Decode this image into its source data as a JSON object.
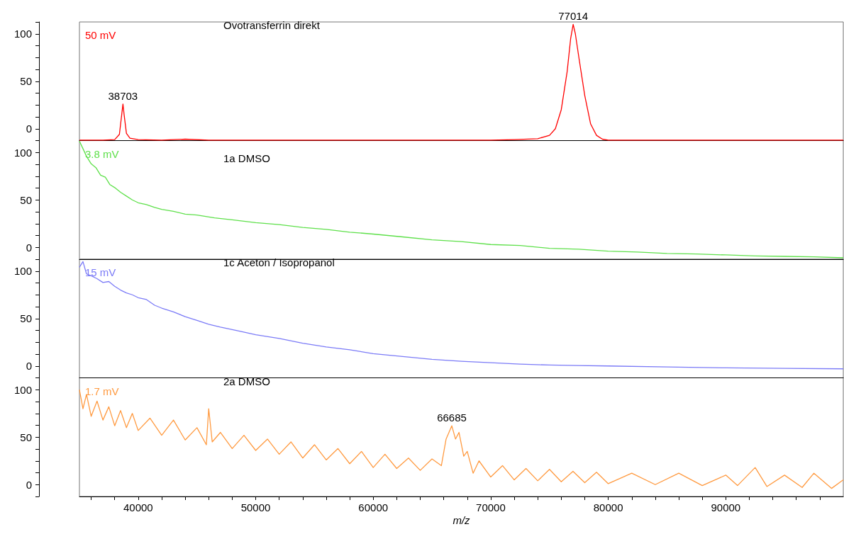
{
  "chart_data": [
    {
      "type": "line",
      "title": "Ovotransferrin direkt",
      "subtitle": "50 mV",
      "xlim": [
        35000,
        100000
      ],
      "ylim": [
        -12.5,
        112.5
      ],
      "yticks": [
        0,
        50,
        100
      ],
      "tick_labels": "y",
      "grid": false,
      "marker": "none",
      "annotations": [
        {
          "text": "38703",
          "x": 38703,
          "y": 26
        },
        {
          "text": "77014",
          "x": 77014,
          "y": 110
        }
      ],
      "series": [
        {
          "color": "#ff0000",
          "x": [
            35000,
            37000,
            38000,
            38400,
            38600,
            38703,
            38800,
            39000,
            39300,
            40000,
            42000,
            44000,
            46000,
            50000,
            60000,
            70000,
            72000,
            74000,
            75000,
            75500,
            76000,
            76500,
            76800,
            77014,
            77200,
            77500,
            78000,
            78500,
            79000,
            79500,
            80000,
            85000,
            90000,
            100000
          ],
          "values": [
            -12,
            -12,
            -11.5,
            -6,
            15,
            26,
            15,
            -5,
            -10,
            -11.5,
            -12,
            -11,
            -12,
            -12,
            -12,
            -12,
            -11.5,
            -10.5,
            -7,
            0,
            20,
            60,
            95,
            110,
            100,
            75,
            35,
            5,
            -7,
            -11,
            -12,
            -12,
            -12,
            -12
          ]
        }
      ]
    },
    {
      "type": "line",
      "title": "1a DMSO",
      "subtitle": "3.8 mV",
      "xlim": [
        35000,
        100000
      ],
      "ylim": [
        -12.5,
        112.5
      ],
      "yticks": [
        0,
        50,
        100
      ],
      "tick_labels": "y",
      "grid": false,
      "marker": "none",
      "series": [
        {
          "color": "#5ee04a",
          "x": [
            35000,
            35300,
            35600,
            36000,
            36400,
            36800,
            37200,
            37600,
            38000,
            38500,
            39000,
            39500,
            40000,
            40700,
            41400,
            42000,
            43000,
            44000,
            45000,
            46500,
            48000,
            50000,
            52000,
            54000,
            56000,
            58000,
            60000,
            62500,
            65000,
            67500,
            70000,
            72500,
            75000,
            77500,
            80000,
            82500,
            85000,
            87500,
            90000,
            92500,
            95000,
            97500,
            100000
          ],
          "values": [
            112,
            104,
            96,
            88,
            84,
            76,
            74,
            66,
            63,
            58,
            54,
            50,
            47,
            45,
            42,
            40,
            38,
            35,
            34,
            31,
            29,
            26,
            24,
            21,
            19,
            16,
            14,
            11,
            8,
            6,
            3,
            2,
            -1,
            -2,
            -4,
            -5,
            -6.5,
            -7,
            -8,
            -9,
            -9.5,
            -10,
            -11
          ]
        }
      ]
    },
    {
      "type": "line",
      "title": "1c Aceton / Isopropanol",
      "subtitle": "15 mV",
      "xlim": [
        35000,
        100000
      ],
      "ylim": [
        -12.5,
        112.5
      ],
      "yticks": [
        0,
        50,
        100
      ],
      "tick_labels": "y",
      "grid": false,
      "marker": "none",
      "series": [
        {
          "color": "#7b7bf7",
          "x": [
            35000,
            35300,
            35600,
            36000,
            36500,
            37000,
            37500,
            38000,
            38500,
            39000,
            39500,
            40000,
            40700,
            41400,
            42000,
            43000,
            44000,
            45000,
            46000,
            47000,
            48500,
            50000,
            52000,
            54000,
            56000,
            58000,
            60000,
            62500,
            65000,
            67500,
            70000,
            72500,
            75000,
            77500,
            80000,
            85000,
            90000,
            95000,
            100000
          ],
          "values": [
            104,
            110,
            97,
            95,
            92,
            88,
            89,
            84,
            80,
            77,
            75,
            72,
            70,
            64,
            61,
            57,
            52,
            48,
            44,
            41,
            37,
            33,
            29,
            24,
            20,
            17,
            13,
            10,
            7,
            5,
            3.5,
            2,
            1,
            0.5,
            0,
            -1,
            -2,
            -2.5,
            -3
          ]
        }
      ]
    },
    {
      "type": "line",
      "title": "2a DMSO",
      "subtitle": "1.7 mV",
      "xlabel": "m/z",
      "xlim": [
        35000,
        100000
      ],
      "ylim": [
        -12.5,
        112.5
      ],
      "xticks": [
        {
          "value": 36000,
          "label": null
        },
        {
          "value": 38000,
          "label": null
        },
        40000,
        {
          "value": 42000,
          "label": null
        },
        {
          "value": 44000,
          "label": null
        },
        {
          "value": 46000,
          "label": null
        },
        {
          "value": 48000,
          "label": null
        },
        50000,
        {
          "value": 52000,
          "label": null
        },
        {
          "value": 54000,
          "label": null
        },
        {
          "value": 56000,
          "label": null
        },
        {
          "value": 58000,
          "label": null
        },
        60000,
        {
          "value": 62000,
          "label": null
        },
        {
          "value": 64000,
          "label": null
        },
        {
          "value": 66000,
          "label": null
        },
        {
          "value": 68000,
          "label": null
        },
        70000,
        {
          "value": 72000,
          "label": null
        },
        {
          "value": 74000,
          "label": null
        },
        {
          "value": 76000,
          "label": null
        },
        {
          "value": 78000,
          "label": null
        },
        80000,
        {
          "value": 82000,
          "label": null
        },
        {
          "value": 84000,
          "label": null
        },
        {
          "value": 86000,
          "label": null
        },
        {
          "value": 88000,
          "label": null
        },
        90000,
        {
          "value": 92000,
          "label": null
        },
        {
          "value": 94000,
          "label": null
        },
        {
          "value": 96000,
          "label": null
        },
        {
          "value": 98000,
          "label": null
        }
      ],
      "yticks": [
        0,
        50,
        100
      ],
      "grid": false,
      "marker": "none",
      "annotations": [
        {
          "text": "66685",
          "x": 66685,
          "y": 62
        }
      ],
      "series": [
        {
          "color": "#ff9a40",
          "x": [
            35000,
            35300,
            35600,
            36000,
            36500,
            37000,
            37500,
            38000,
            38500,
            39000,
            39500,
            40000,
            41000,
            42000,
            43000,
            44000,
            45000,
            45800,
            46000,
            46300,
            47000,
            48000,
            49000,
            50000,
            51000,
            52000,
            53000,
            54000,
            55000,
            56000,
            57000,
            58000,
            59000,
            60000,
            61000,
            62000,
            63000,
            64000,
            65000,
            65800,
            66200,
            66685,
            67000,
            67300,
            67700,
            68000,
            68500,
            69000,
            70000,
            71000,
            72000,
            73000,
            74000,
            75000,
            76000,
            77000,
            78000,
            79000,
            80000,
            82000,
            84000,
            86000,
            88000,
            90000,
            91000,
            92500,
            93500,
            95000,
            96500,
            97500,
            99000,
            100000
          ],
          "values": [
            100,
            80,
            95,
            72,
            88,
            68,
            82,
            62,
            78,
            60,
            75,
            57,
            70,
            52,
            68,
            47,
            60,
            42,
            80,
            45,
            55,
            38,
            52,
            36,
            48,
            32,
            45,
            28,
            42,
            26,
            38,
            22,
            35,
            18,
            32,
            17,
            28,
            15,
            27,
            20,
            48,
            62,
            48,
            55,
            30,
            35,
            12,
            25,
            8,
            20,
            5,
            17,
            4,
            16,
            3,
            14,
            2,
            13,
            1,
            12,
            0,
            12,
            -1,
            10,
            -1,
            18,
            -2,
            10,
            -3,
            12,
            -4,
            5
          ]
        }
      ]
    }
  ]
}
